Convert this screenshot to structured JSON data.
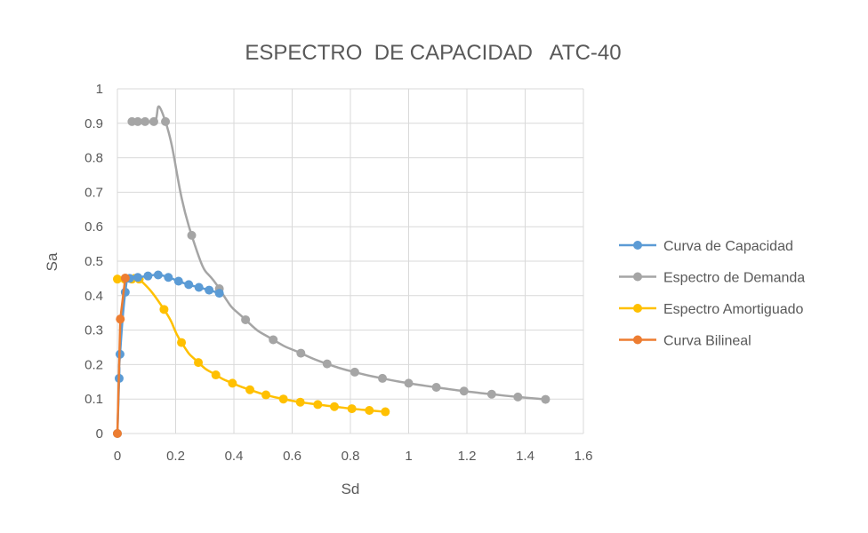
{
  "chart_data": {
    "type": "scatter",
    "title": "ESPECTRO  DE CAPACIDAD   ATC-40",
    "xlabel": "Sd",
    "ylabel": "Sa",
    "xlim": [
      0,
      1.6
    ],
    "ylim": [
      0,
      1
    ],
    "xticks": [
      "0",
      "0.2",
      "0.4",
      "0.6",
      "0.8",
      "1",
      "1.2",
      "1.4",
      "1.6"
    ],
    "yticks": [
      "0",
      "0.1",
      "0.2",
      "0.3",
      "0.4",
      "0.5",
      "0.6",
      "0.7",
      "0.8",
      "0.9",
      "1"
    ],
    "grid": true,
    "legend_position": "right",
    "series": [
      {
        "name": "Curva de Capacidad",
        "color": "#5B9BD5",
        "smooth": true,
        "points": [
          [
            0.0,
            0.0
          ],
          [
            0.006,
            0.16
          ],
          [
            0.009,
            0.23
          ],
          [
            0.027,
            0.41
          ],
          [
            0.042,
            0.45
          ],
          [
            0.07,
            0.453
          ],
          [
            0.105,
            0.457
          ],
          [
            0.14,
            0.46
          ],
          [
            0.175,
            0.453
          ],
          [
            0.21,
            0.442
          ],
          [
            0.245,
            0.432
          ],
          [
            0.28,
            0.424
          ],
          [
            0.315,
            0.416
          ],
          [
            0.35,
            0.407
          ]
        ]
      },
      {
        "name": "Espectro de Demanda",
        "color": "#A5A5A5",
        "smooth": true,
        "points": [
          [
            0.05,
            0.905
          ],
          [
            0.07,
            0.905
          ],
          [
            0.095,
            0.905
          ],
          [
            0.125,
            0.905
          ],
          [
            0.165,
            0.905
          ],
          [
            0.255,
            0.575
          ],
          [
            0.35,
            0.42
          ],
          [
            0.44,
            0.33
          ],
          [
            0.535,
            0.272
          ],
          [
            0.63,
            0.233
          ],
          [
            0.72,
            0.202
          ],
          [
            0.815,
            0.178
          ],
          [
            0.91,
            0.16
          ],
          [
            1.0,
            0.146
          ],
          [
            1.095,
            0.134
          ],
          [
            1.19,
            0.123
          ],
          [
            1.285,
            0.114
          ],
          [
            1.375,
            0.106
          ],
          [
            1.47,
            0.099
          ]
        ]
      },
      {
        "name": "Espectro Amortiguado",
        "color": "#FFC000",
        "smooth": true,
        "points": [
          [
            0.0,
            0.448
          ],
          [
            0.025,
            0.448
          ],
          [
            0.05,
            0.448
          ],
          [
            0.075,
            0.448
          ],
          [
            0.16,
            0.36
          ],
          [
            0.22,
            0.264
          ],
          [
            0.278,
            0.206
          ],
          [
            0.338,
            0.17
          ],
          [
            0.395,
            0.146
          ],
          [
            0.455,
            0.127
          ],
          [
            0.51,
            0.112
          ],
          [
            0.57,
            0.1
          ],
          [
            0.628,
            0.091
          ],
          [
            0.688,
            0.084
          ],
          [
            0.745,
            0.078
          ],
          [
            0.805,
            0.072
          ],
          [
            0.865,
            0.067
          ],
          [
            0.92,
            0.063
          ]
        ]
      },
      {
        "name": "Curva Bilineal",
        "color": "#ED7D31",
        "smooth": false,
        "points": [
          [
            0.0,
            0.0
          ],
          [
            0.01,
            0.332
          ],
          [
            0.027,
            0.451
          ]
        ]
      }
    ]
  }
}
